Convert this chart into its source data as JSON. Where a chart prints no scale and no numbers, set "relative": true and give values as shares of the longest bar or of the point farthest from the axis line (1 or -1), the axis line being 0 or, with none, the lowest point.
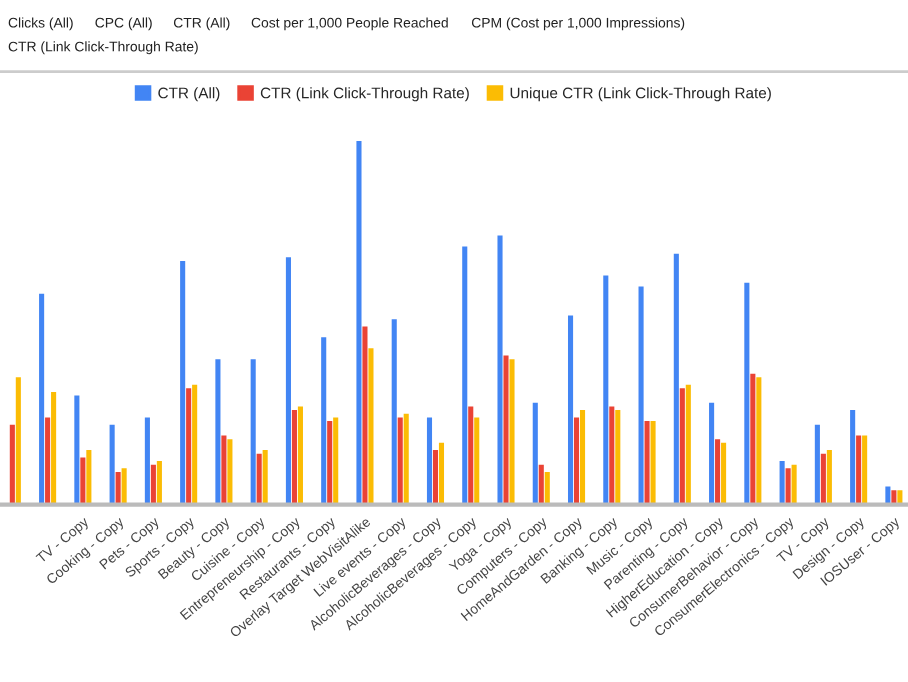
{
  "chart_data": {
    "type": "bar",
    "relative": true,
    "legend": "top",
    "annotations": [
      "Clicks (All)",
      "CPC (All)",
      "CTR (All)",
      "Cost per 1,000 People Reached",
      "CPM (Cost per 1,000 Impressions)",
      "CTR (Link Click-Through Rate)"
    ],
    "categories": [
      null,
      null,
      "TV - Copy",
      "Cooking - Copy",
      "Pets - Copy",
      "Sports - Copy",
      "Beauty - Copy",
      "Cuisine - Copy",
      "Entrepreneurship - Copy",
      "Restaurants - Copy",
      "Overlay Target WebVisitAlike",
      "Live events - Copy",
      "AlcoholicBeverages - Copy",
      "AlcoholicBeverages - Copy",
      "Yoga - Copy",
      "Computers - Copy",
      "HomeAndGarden - Copy",
      "Banking - Copy",
      "Music - Copy",
      "Parenting - Copy",
      "HigherEducation - Copy",
      "ConsumerBehavior - Copy",
      "ConsumerElectronics - Copy",
      "TV - Copy",
      "Design - Copy",
      "IOSUser - Copy"
    ],
    "series": [
      {
        "name": "CTR (All)",
        "color": "#4285f4",
        "values": [
          null,
          0.58,
          0.3,
          0.22,
          0.24,
          0.67,
          0.4,
          0.4,
          0.68,
          0.46,
          1.0,
          0.51,
          0.24,
          0.71,
          0.74,
          0.28,
          0.52,
          0.63,
          0.6,
          0.69,
          0.28,
          0.61,
          0.12,
          0.22,
          0.26,
          0.05
        ]
      },
      {
        "name": "CTR (Link Click-Through Rate)",
        "color": "#ea4335",
        "values": [
          0.22,
          0.24,
          0.13,
          0.09,
          0.11,
          0.32,
          0.19,
          0.14,
          0.26,
          0.23,
          0.49,
          0.24,
          0.15,
          0.27,
          0.41,
          0.11,
          0.24,
          0.27,
          0.23,
          0.32,
          0.18,
          0.36,
          0.1,
          0.14,
          0.19,
          0.04
        ]
      },
      {
        "name": "Unique CTR (Link Click-Through Rate)",
        "color": "#fbbc04",
        "values": [
          0.35,
          0.31,
          0.15,
          0.1,
          0.12,
          0.33,
          0.18,
          0.15,
          0.27,
          0.24,
          0.43,
          0.25,
          0.17,
          0.24,
          0.4,
          0.09,
          0.26,
          0.26,
          0.23,
          0.33,
          0.17,
          0.35,
          0.11,
          0.15,
          0.19,
          0.04
        ]
      }
    ]
  }
}
